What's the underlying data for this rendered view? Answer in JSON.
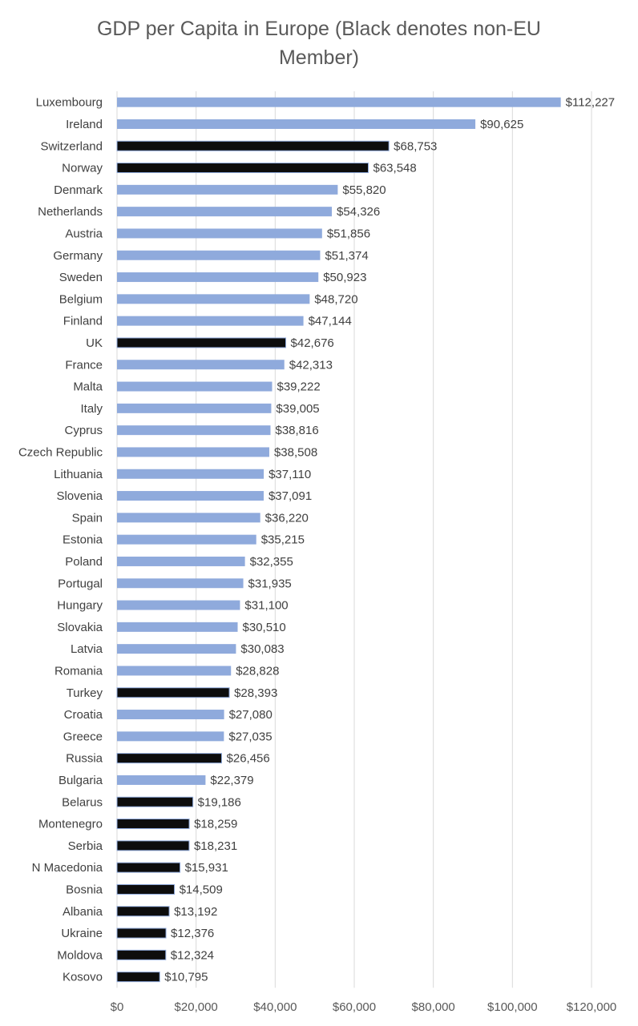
{
  "chart_data": {
    "type": "bar",
    "orientation": "horizontal",
    "title": "GDP per Capita in Europe (Black denotes non-EU Member)",
    "title_lines": [
      "GDP per Capita in Europe (Black denotes non-EU",
      "Member)"
    ],
    "xlabel": "",
    "ylabel": "",
    "xlim": [
      0,
      120000
    ],
    "x_ticks": [
      0,
      20000,
      40000,
      60000,
      80000,
      100000,
      120000
    ],
    "x_tick_labels": [
      "$0",
      "$20,000",
      "$40,000",
      "$60,000",
      "$80,000",
      "$100,000",
      "$120,000"
    ],
    "grid": "vertical gridlines",
    "legend": "none",
    "colors": {
      "eu": "#8faadc",
      "non_eu": "#0d0d0d",
      "non_eu_outline": "#8faadc",
      "gridline": "#d9d9d9"
    },
    "bars": [
      {
        "category": "Luxembourg",
        "value": 112227,
        "label": "$112,227",
        "non_eu": false
      },
      {
        "category": "Ireland",
        "value": 90625,
        "label": "$90,625",
        "non_eu": false
      },
      {
        "category": "Switzerland",
        "value": 68753,
        "label": "$68,753",
        "non_eu": true
      },
      {
        "category": "Norway",
        "value": 63548,
        "label": "$63,548",
        "non_eu": true
      },
      {
        "category": "Denmark",
        "value": 55820,
        "label": "$55,820",
        "non_eu": false
      },
      {
        "category": "Netherlands",
        "value": 54326,
        "label": "$54,326",
        "non_eu": false
      },
      {
        "category": "Austria",
        "value": 51856,
        "label": "$51,856",
        "non_eu": false
      },
      {
        "category": "Germany",
        "value": 51374,
        "label": "$51,374",
        "non_eu": false
      },
      {
        "category": "Sweden",
        "value": 50923,
        "label": "$50,923",
        "non_eu": false
      },
      {
        "category": "Belgium",
        "value": 48720,
        "label": "$48,720",
        "non_eu": false
      },
      {
        "category": "Finland",
        "value": 47144,
        "label": "$47,144",
        "non_eu": false
      },
      {
        "category": "UK",
        "value": 42676,
        "label": "$42,676",
        "non_eu": true
      },
      {
        "category": "France",
        "value": 42313,
        "label": "$42,313",
        "non_eu": false
      },
      {
        "category": "Malta",
        "value": 39222,
        "label": "$39,222",
        "non_eu": false
      },
      {
        "category": "Italy",
        "value": 39005,
        "label": "$39,005",
        "non_eu": false
      },
      {
        "category": "Cyprus",
        "value": 38816,
        "label": "$38,816",
        "non_eu": false
      },
      {
        "category": "Czech Republic",
        "value": 38508,
        "label": "$38,508",
        "non_eu": false
      },
      {
        "category": "Lithuania",
        "value": 37110,
        "label": "$37,110",
        "non_eu": false
      },
      {
        "category": "Slovenia",
        "value": 37091,
        "label": "$37,091",
        "non_eu": false
      },
      {
        "category": "Spain",
        "value": 36220,
        "label": "$36,220",
        "non_eu": false
      },
      {
        "category": "Estonia",
        "value": 35215,
        "label": "$35,215",
        "non_eu": false
      },
      {
        "category": "Poland",
        "value": 32355,
        "label": "$32,355",
        "non_eu": false
      },
      {
        "category": "Portugal",
        "value": 31935,
        "label": "$31,935",
        "non_eu": false
      },
      {
        "category": "Hungary",
        "value": 31100,
        "label": "$31,100",
        "non_eu": false
      },
      {
        "category": "Slovakia",
        "value": 30510,
        "label": "$30,510",
        "non_eu": false
      },
      {
        "category": "Latvia",
        "value": 30083,
        "label": "$30,083",
        "non_eu": false
      },
      {
        "category": "Romania",
        "value": 28828,
        "label": "$28,828",
        "non_eu": false
      },
      {
        "category": "Turkey",
        "value": 28393,
        "label": "$28,393",
        "non_eu": true
      },
      {
        "category": "Croatia",
        "value": 27080,
        "label": "$27,080",
        "non_eu": false
      },
      {
        "category": "Greece",
        "value": 27035,
        "label": "$27,035",
        "non_eu": false
      },
      {
        "category": "Russia",
        "value": 26456,
        "label": "$26,456",
        "non_eu": true
      },
      {
        "category": "Bulgaria",
        "value": 22379,
        "label": "$22,379",
        "non_eu": false
      },
      {
        "category": "Belarus",
        "value": 19186,
        "label": "$19,186",
        "non_eu": true
      },
      {
        "category": "Montenegro",
        "value": 18259,
        "label": "$18,259",
        "non_eu": true
      },
      {
        "category": "Serbia",
        "value": 18231,
        "label": "$18,231",
        "non_eu": true
      },
      {
        "category": "N Macedonia",
        "value": 15931,
        "label": "$15,931",
        "non_eu": true
      },
      {
        "category": "Bosnia",
        "value": 14509,
        "label": "$14,509",
        "non_eu": true
      },
      {
        "category": "Albania",
        "value": 13192,
        "label": "$13,192",
        "non_eu": true
      },
      {
        "category": "Ukraine",
        "value": 12376,
        "label": "$12,376",
        "non_eu": true
      },
      {
        "category": "Moldova",
        "value": 12324,
        "label": "$12,324",
        "non_eu": true
      },
      {
        "category": "Kosovo",
        "value": 10795,
        "label": "$10,795",
        "non_eu": true
      }
    ]
  }
}
